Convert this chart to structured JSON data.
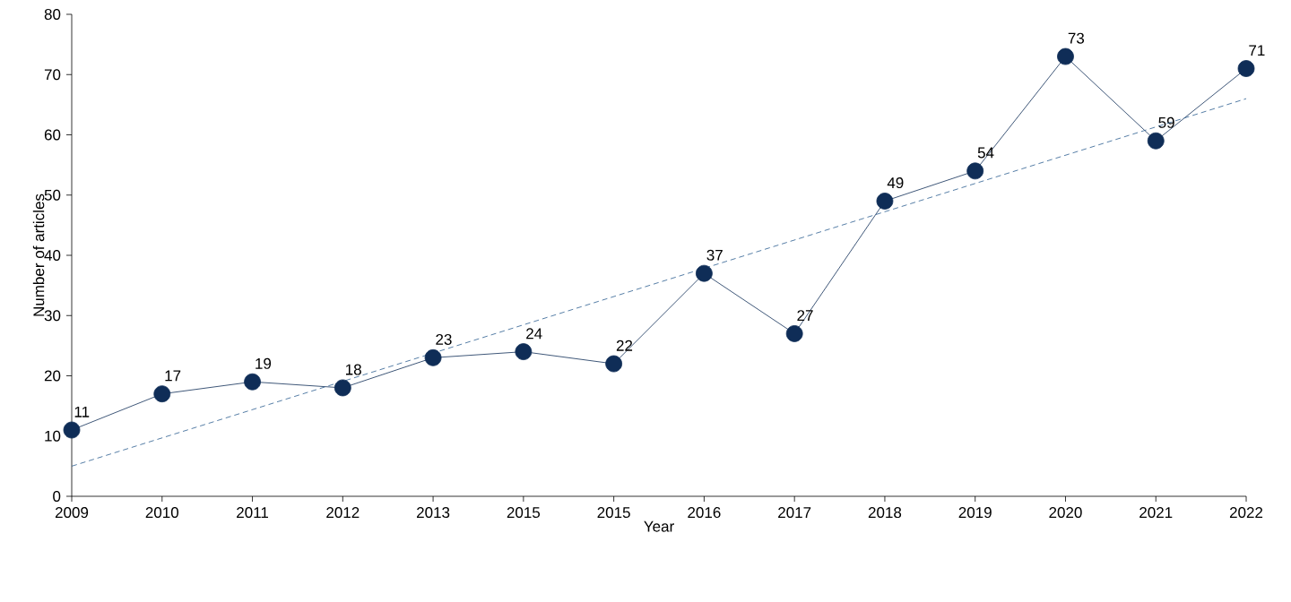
{
  "chart_data": {
    "type": "line",
    "xlabel": "Year",
    "ylabel": "Number of articles",
    "categories": [
      "2009",
      "2010",
      "2011",
      "2012",
      "2013",
      "2015",
      "2015",
      "2016",
      "2017",
      "2018",
      "2019",
      "2020",
      "2021",
      "2022"
    ],
    "ylim": [
      0,
      80
    ],
    "yticks": [
      0,
      10,
      20,
      30,
      40,
      50,
      60,
      70,
      80
    ],
    "marker": "circle",
    "series": [
      {
        "color": "#0f2d57",
        "values": [
          11,
          17,
          19,
          18,
          23,
          24,
          22,
          37,
          27,
          49,
          54,
          73,
          59,
          71
        ],
        "value_labels": [
          "11",
          "17",
          "19",
          "18",
          "23",
          "24",
          "22",
          "37",
          "27",
          "49",
          "54",
          "73",
          "59",
          "71"
        ]
      },
      {
        "type": "line",
        "values": [
          5,
          null,
          null,
          null,
          null,
          null,
          null,
          null,
          null,
          null,
          null,
          null,
          null,
          66
        ],
        "color": "#2b5d8f",
        "line_style": "dashed",
        "marker": "none"
      }
    ]
  }
}
